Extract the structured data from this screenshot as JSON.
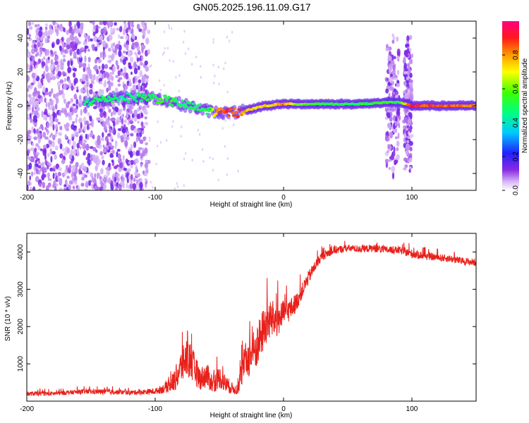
{
  "title": "GN05.2025.196.11.09.G17",
  "colors": {
    "snr_line": "#e8201a",
    "spectrogram_dot": "#7a3cf0",
    "ridge_green": "#2ee86a",
    "ridge_red": "#ff2a10",
    "frame": "#000000"
  },
  "chart_data": [
    {
      "type": "heatmap",
      "title": "GN05.2025.196.11.09.G17",
      "xlabel": "Height of straight line (km)",
      "ylabel": "Frequency (Hz)",
      "xlim": [
        -200,
        150
      ],
      "ylim": [
        -50,
        50
      ],
      "x_ticks": [
        -200,
        -100,
        0,
        100
      ],
      "y_ticks": [
        -40,
        -20,
        0,
        20,
        40
      ],
      "grid": false,
      "colorbar": {
        "label": "Normalized spectral amplitude",
        "range": [
          0,
          1
        ],
        "ticks": [
          "0.0",
          "0.2",
          "0.4",
          "0.6",
          "0.8"
        ],
        "colormap": "rainbow (white-purple-blue-cyan-green-yellow-orange-red-magenta)"
      },
      "ridge": {
        "x": [
          -155,
          -140,
          -120,
          -105,
          -95,
          -85,
          -75,
          -65,
          -58,
          -50,
          -45,
          -40,
          -35,
          -30,
          -25,
          -20,
          -15,
          -10,
          -5,
          0,
          10,
          20,
          40,
          60,
          80,
          90,
          100,
          110,
          130,
          150
        ],
        "frequency": [
          2,
          4,
          5,
          5,
          4,
          2,
          0,
          -2,
          -3,
          -4,
          -4,
          -4,
          -4,
          -3,
          -2,
          -1,
          0,
          0,
          1,
          1,
          1,
          1,
          1,
          1,
          2,
          2,
          0,
          0,
          0,
          0
        ],
        "amplitude": [
          0.45,
          0.5,
          0.45,
          0.5,
          0.55,
          0.5,
          0.45,
          0.5,
          0.5,
          0.85,
          0.9,
          0.88,
          0.85,
          0.8,
          0.75,
          0.7,
          0.8,
          0.7,
          0.75,
          0.85,
          0.6,
          0.55,
          0.5,
          0.5,
          0.55,
          0.5,
          0.95,
          0.85,
          0.85,
          0.8
        ]
      },
      "noise_regions": [
        {
          "x_range": [
            -200,
            -105
          ],
          "frequency_range": [
            -50,
            50
          ],
          "amplitude": "low-moderate"
        },
        {
          "x_range": [
            80,
            90
          ],
          "frequency_range": [
            -45,
            45
          ],
          "amplitude": "moderate"
        },
        {
          "x_range": [
            94,
            100
          ],
          "frequency_range": [
            -45,
            45
          ],
          "amplitude": "moderate"
        }
      ]
    },
    {
      "type": "line",
      "xlabel": "Height of straight line (km)",
      "ylabel": "SNR (10 * v/v)",
      "xlim": [
        -200,
        150
      ],
      "ylim": [
        0,
        4500
      ],
      "x_ticks": [
        -200,
        -100,
        0,
        100
      ],
      "y_ticks": [
        1000,
        2000,
        3000,
        4000
      ],
      "grid": false,
      "series": [
        {
          "x": [
            -200,
            -180,
            -160,
            -140,
            -120,
            -100,
            -90,
            -85,
            -80,
            -75,
            -70,
            -65,
            -60,
            -55,
            -50,
            -45,
            -40,
            -36,
            -33,
            -30,
            -25,
            -20,
            -15,
            -10,
            -5,
            0,
            5,
            10,
            15,
            20,
            25,
            30,
            40,
            50,
            60,
            70,
            80,
            90,
            100,
            110,
            120,
            130,
            140,
            150
          ],
          "y": [
            200,
            200,
            250,
            250,
            230,
            260,
            380,
            550,
            900,
            1200,
            900,
            600,
            700,
            450,
            650,
            450,
            350,
            280,
            700,
            1050,
            1250,
            1500,
            2000,
            2200,
            2150,
            2350,
            2450,
            2650,
            3000,
            3350,
            3650,
            3900,
            4050,
            4100,
            4080,
            4100,
            4050,
            4050,
            3950,
            3900,
            3850,
            3820,
            3750,
            3720
          ],
          "noise": [
            60,
            60,
            60,
            70,
            60,
            80,
            150,
            300,
            450,
            550,
            450,
            300,
            350,
            250,
            300,
            250,
            150,
            120,
            350,
            500,
            550,
            600,
            600,
            550,
            450,
            350,
            300,
            250,
            200,
            180,
            150,
            120,
            100,
            100,
            100,
            100,
            100,
            100,
            120,
            100,
            100,
            100,
            100,
            100
          ]
        }
      ]
    }
  ]
}
